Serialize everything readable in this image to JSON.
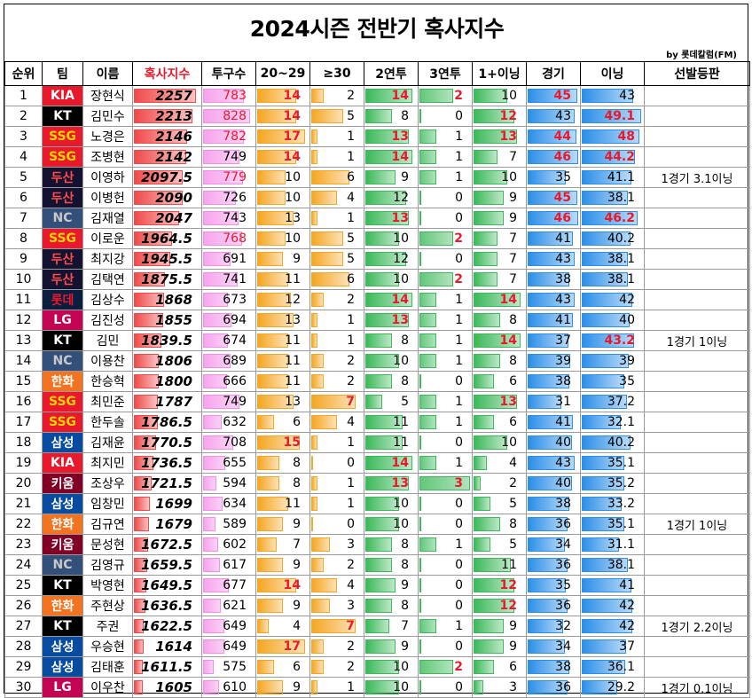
{
  "title": "2024시즌 전반기 혹사지수",
  "byline": "by 롯데칼럼(FM)",
  "headers": [
    "순위",
    "팀",
    "이름",
    "혹사지수",
    "투구수",
    "20~29",
    "≥30",
    "2연투",
    "3연투",
    "1+이닝",
    "경기",
    "이닝",
    "선발등판"
  ],
  "colors": {
    "accent_red": "#e8192c",
    "score_bar": "#f04a4a",
    "pitch_bar": "#f48ee8",
    "orange_bar": "#f5a623",
    "green_bar": "#3cb95a",
    "blue_bar": "#2c8fe8"
  },
  "teams": {
    "KIA": {
      "bg": "#e8192c",
      "fg": "#ffffff"
    },
    "KT": {
      "bg": "#000000",
      "fg": "#ffffff"
    },
    "SSG": {
      "bg": "#e8192c",
      "fg": "#ffd400"
    },
    "두산": {
      "bg": "#131230",
      "fg": "#ff4b4b"
    },
    "NC": {
      "bg": "#33507a",
      "fg": "#c8c8c8"
    },
    "롯데": {
      "bg": "#0a1e3f",
      "fg": "#e8192c"
    },
    "LG": {
      "bg": "#c30452",
      "fg": "#ffffff"
    },
    "한화": {
      "bg": "#f37321",
      "fg": "#ffffff"
    },
    "삼성": {
      "bg": "#074ca1",
      "fg": "#ffffff"
    },
    "키움": {
      "bg": "#820024",
      "fg": "#ffffff"
    }
  },
  "rows": [
    {
      "rank": "1",
      "team": "KIA",
      "name": "장현식",
      "score": "2257",
      "pitches": "783",
      "p20": "14",
      "p30": "2",
      "b2": "14",
      "b3": "2",
      "inn1": "10",
      "games": "45",
      "innings": "43",
      "start": "",
      "red": [
        "pitches",
        "p20",
        "b2",
        "b3",
        "games"
      ]
    },
    {
      "rank": "2",
      "team": "KT",
      "name": "김민수",
      "score": "2213",
      "pitches": "828",
      "p20": "14",
      "p30": "5",
      "b2": "8",
      "b3": "0",
      "inn1": "12",
      "games": "43",
      "innings": "49.1",
      "start": "",
      "red": [
        "pitches",
        "p20",
        "inn1",
        "innings"
      ]
    },
    {
      "rank": "3",
      "team": "SSG",
      "name": "노경은",
      "score": "2146",
      "pitches": "782",
      "p20": "17",
      "p30": "1",
      "b2": "13",
      "b3": "1",
      "inn1": "13",
      "games": "44",
      "innings": "48",
      "start": "",
      "red": [
        "pitches",
        "p20",
        "b2",
        "inn1",
        "games",
        "innings"
      ]
    },
    {
      "rank": "4",
      "team": "SSG",
      "name": "조병현",
      "score": "2142",
      "pitches": "749",
      "p20": "14",
      "p30": "1",
      "b2": "14",
      "b3": "1",
      "inn1": "7",
      "games": "46",
      "innings": "44.2",
      "start": "",
      "red": [
        "p20",
        "b2",
        "games",
        "innings"
      ]
    },
    {
      "rank": "5",
      "team": "두산",
      "name": "이영하",
      "score": "2097.5",
      "pitches": "779",
      "p20": "10",
      "p30": "6",
      "b2": "9",
      "b3": "1",
      "inn1": "10",
      "games": "35",
      "innings": "41.1",
      "start": "1경기 3.1이닝",
      "red": [
        "pitches"
      ]
    },
    {
      "rank": "6",
      "team": "두산",
      "name": "이병헌",
      "score": "2090",
      "pitches": "726",
      "p20": "10",
      "p30": "4",
      "b2": "12",
      "b3": "0",
      "inn1": "9",
      "games": "45",
      "innings": "38.1",
      "start": "",
      "red": [
        "games"
      ]
    },
    {
      "rank": "7",
      "team": "NC",
      "name": "김재열",
      "score": "2047",
      "pitches": "743",
      "p20": "13",
      "p30": "1",
      "b2": "13",
      "b3": "0",
      "inn1": "9",
      "games": "46",
      "innings": "46.2",
      "start": "",
      "red": [
        "b2",
        "games",
        "innings"
      ]
    },
    {
      "rank": "8",
      "team": "SSG",
      "name": "이로운",
      "score": "1964.5",
      "pitches": "768",
      "p20": "10",
      "p30": "5",
      "b2": "10",
      "b3": "2",
      "inn1": "7",
      "games": "41",
      "innings": "40.2",
      "start": "",
      "red": [
        "pitches",
        "b3"
      ]
    },
    {
      "rank": "9",
      "team": "두산",
      "name": "최지강",
      "score": "1945.5",
      "pitches": "691",
      "p20": "9",
      "p30": "5",
      "b2": "12",
      "b3": "0",
      "inn1": "7",
      "games": "43",
      "innings": "38.1",
      "start": "",
      "red": []
    },
    {
      "rank": "10",
      "team": "두산",
      "name": "김택연",
      "score": "1875.5",
      "pitches": "741",
      "p20": "11",
      "p30": "6",
      "b2": "10",
      "b3": "2",
      "inn1": "7",
      "games": "38",
      "innings": "38.1",
      "start": "",
      "red": [
        "b3"
      ]
    },
    {
      "rank": "11",
      "team": "롯데",
      "name": "김상수",
      "score": "1868",
      "pitches": "673",
      "p20": "12",
      "p30": "2",
      "b2": "14",
      "b3": "1",
      "inn1": "14",
      "games": "43",
      "innings": "42",
      "start": "",
      "red": [
        "b2",
        "inn1"
      ]
    },
    {
      "rank": "12",
      "team": "LG",
      "name": "김진성",
      "score": "1855",
      "pitches": "694",
      "p20": "13",
      "p30": "1",
      "b2": "13",
      "b3": "1",
      "inn1": "8",
      "games": "41",
      "innings": "40",
      "start": "",
      "red": [
        "b2"
      ]
    },
    {
      "rank": "13",
      "team": "KT",
      "name": "김민",
      "score": "1839.5",
      "pitches": "674",
      "p20": "11",
      "p30": "1",
      "b2": "8",
      "b3": "1",
      "inn1": "14",
      "games": "37",
      "innings": "43.2",
      "start": "1경기 1이닝",
      "red": [
        "inn1",
        "innings"
      ]
    },
    {
      "rank": "14",
      "team": "NC",
      "name": "이용찬",
      "score": "1806",
      "pitches": "689",
      "p20": "11",
      "p30": "2",
      "b2": "10",
      "b3": "1",
      "inn1": "8",
      "games": "39",
      "innings": "39",
      "start": "",
      "red": []
    },
    {
      "rank": "15",
      "team": "한화",
      "name": "한승혁",
      "score": "1800",
      "pitches": "666",
      "p20": "11",
      "p30": "2",
      "b2": "8",
      "b3": "0",
      "inn1": "6",
      "games": "38",
      "innings": "35",
      "start": "",
      "red": []
    },
    {
      "rank": "16",
      "team": "SSG",
      "name": "최민준",
      "score": "1787",
      "pitches": "749",
      "p20": "13",
      "p30": "7",
      "b2": "5",
      "b3": "1",
      "inn1": "13",
      "games": "31",
      "innings": "37.2",
      "start": "",
      "red": [
        "p30",
        "inn1"
      ]
    },
    {
      "rank": "17",
      "team": "SSG",
      "name": "한두솔",
      "score": "1786.5",
      "pitches": "632",
      "p20": "6",
      "p30": "4",
      "b2": "11",
      "b3": "1",
      "inn1": "6",
      "games": "41",
      "innings": "32.1",
      "start": "",
      "red": []
    },
    {
      "rank": "18",
      "team": "삼성",
      "name": "김재윤",
      "score": "1770.5",
      "pitches": "708",
      "p20": "15",
      "p30": "1",
      "b2": "11",
      "b3": "0",
      "inn1": "10",
      "games": "40",
      "innings": "40.2",
      "start": "",
      "red": [
        "p20"
      ]
    },
    {
      "rank": "19",
      "team": "KIA",
      "name": "최지민",
      "score": "1736.5",
      "pitches": "655",
      "p20": "8",
      "p30": "0",
      "b2": "14",
      "b3": "1",
      "inn1": "4",
      "games": "43",
      "innings": "35.1",
      "start": "",
      "red": [
        "b2"
      ]
    },
    {
      "rank": "20",
      "team": "키움",
      "name": "조상우",
      "score": "1721.5",
      "pitches": "594",
      "p20": "8",
      "p30": "1",
      "b2": "13",
      "b3": "3",
      "inn1": "2",
      "games": "40",
      "innings": "35.2",
      "start": "",
      "red": [
        "b2",
        "b3"
      ]
    },
    {
      "rank": "21",
      "team": "삼성",
      "name": "임창민",
      "score": "1699",
      "pitches": "634",
      "p20": "11",
      "p30": "1",
      "b2": "10",
      "b3": "0",
      "inn1": "5",
      "games": "38",
      "innings": "33.2",
      "start": "",
      "red": []
    },
    {
      "rank": "22",
      "team": "한화",
      "name": "김규연",
      "score": "1679",
      "pitches": "589",
      "p20": "9",
      "p30": "0",
      "b2": "10",
      "b3": "0",
      "inn1": "8",
      "games": "36",
      "innings": "35.1",
      "start": "1경기 1이닝",
      "red": []
    },
    {
      "rank": "23",
      "team": "키움",
      "name": "문성현",
      "score": "1672.5",
      "pitches": "602",
      "p20": "7",
      "p30": "3",
      "b2": "8",
      "b3": "1",
      "inn1": "5",
      "games": "34",
      "innings": "31.1",
      "start": "",
      "red": []
    },
    {
      "rank": "24",
      "team": "NC",
      "name": "김영규",
      "score": "1659.5",
      "pitches": "617",
      "p20": "9",
      "p30": "2",
      "b2": "8",
      "b3": "0",
      "inn1": "11",
      "games": "36",
      "innings": "38.1",
      "start": "",
      "red": []
    },
    {
      "rank": "25",
      "team": "KT",
      "name": "박영현",
      "score": "1649.5",
      "pitches": "677",
      "p20": "14",
      "p30": "4",
      "b2": "9",
      "b3": "0",
      "inn1": "12",
      "games": "35",
      "innings": "41",
      "start": "",
      "red": [
        "p20",
        "inn1"
      ]
    },
    {
      "rank": "26",
      "team": "한화",
      "name": "주현상",
      "score": "1636.5",
      "pitches": "621",
      "p20": "9",
      "p30": "3",
      "b2": "8",
      "b3": "0",
      "inn1": "12",
      "games": "36",
      "innings": "42",
      "start": "",
      "red": [
        "inn1"
      ]
    },
    {
      "rank": "27",
      "team": "KT",
      "name": "주권",
      "score": "1622.5",
      "pitches": "649",
      "p20": "4",
      "p30": "7",
      "b2": "7",
      "b3": "1",
      "inn1": "9",
      "games": "32",
      "innings": "42",
      "start": "1경기 2.2이닝",
      "red": [
        "p30"
      ]
    },
    {
      "rank": "28",
      "team": "삼성",
      "name": "우승현",
      "score": "1614",
      "pitches": "649",
      "p20": "17",
      "p30": "2",
      "b2": "9",
      "b3": "0",
      "inn1": "9",
      "games": "34",
      "innings": "37",
      "start": "",
      "red": [
        "p20"
      ]
    },
    {
      "rank": "29",
      "team": "삼성",
      "name": "김태훈",
      "score": "1611.5",
      "pitches": "575",
      "p20": "6",
      "p30": "2",
      "b2": "10",
      "b3": "2",
      "inn1": "6",
      "games": "38",
      "innings": "36.1",
      "start": "",
      "red": [
        "b3"
      ]
    },
    {
      "rank": "30",
      "team": "LG",
      "name": "이우찬",
      "score": "1605",
      "pitches": "610",
      "p20": "9",
      "p30": "1",
      "b2": "10",
      "b3": "0",
      "inn1": "3",
      "games": "36",
      "innings": "29.2",
      "start": "1경기 0.1이닝",
      "red": []
    }
  ]
}
